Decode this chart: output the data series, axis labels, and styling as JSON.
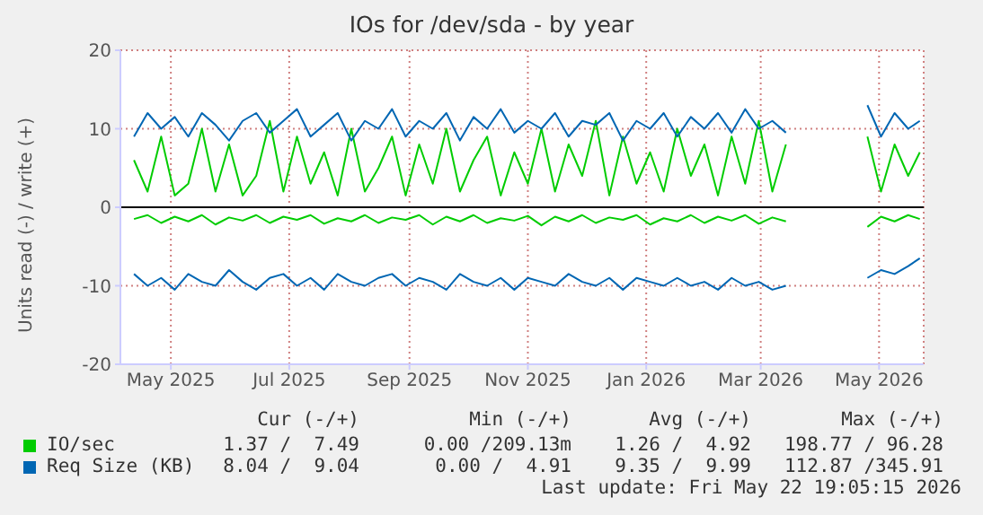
{
  "chart_data": {
    "type": "line",
    "title": "IOs for /dev/sda - by year",
    "ylabel": "Units read (-) / write (+)",
    "x": [
      "2025-04-12",
      "2025-04-19",
      "2025-04-26",
      "2025-05-03",
      "2025-05-10",
      "2025-05-17",
      "2025-05-24",
      "2025-05-31",
      "2025-06-07",
      "2025-06-14",
      "2025-06-21",
      "2025-06-28",
      "2025-07-05",
      "2025-07-12",
      "2025-07-19",
      "2025-07-26",
      "2025-08-02",
      "2025-08-09",
      "2025-08-16",
      "2025-08-23",
      "2025-08-30",
      "2025-09-06",
      "2025-09-13",
      "2025-09-20",
      "2025-09-27",
      "2025-10-04",
      "2025-10-11",
      "2025-10-18",
      "2025-10-25",
      "2025-11-01",
      "2025-11-08",
      "2025-11-15",
      "2025-11-22",
      "2025-11-29",
      "2025-12-06",
      "2025-12-13",
      "2025-12-20",
      "2025-12-27",
      "2026-01-03",
      "2026-01-10",
      "2026-01-17",
      "2026-01-24",
      "2026-01-31",
      "2026-02-07",
      "2026-02-14",
      "2026-02-21",
      "2026-02-28",
      "2026-03-07",
      "2026-03-14",
      "2026-03-21",
      "2026-03-28",
      "2026-04-04",
      "2026-04-11",
      "2026-04-18",
      "2026-04-25",
      "2026-05-02",
      "2026-05-09",
      "2026-05-16",
      "2026-05-22"
    ],
    "series": [
      {
        "name": "IO/sec",
        "color": "#00cc00",
        "values": [
          6,
          2,
          9,
          1.5,
          3,
          10,
          2,
          8,
          1.5,
          4,
          11,
          2,
          9,
          3,
          7,
          1.5,
          10,
          2,
          5,
          9,
          1.5,
          8,
          3,
          10,
          2,
          6,
          9,
          1.5,
          7,
          3,
          10,
          2,
          8,
          4,
          11,
          1.5,
          9,
          3,
          7,
          2,
          10,
          4,
          8,
          1.5,
          9,
          3,
          11,
          2,
          8,
          null,
          null,
          null,
          null,
          null,
          9,
          2,
          8,
          4,
          7
        ]
      },
      {
        "color": "#00cc00",
        "values": [
          -1.5,
          -1,
          -2,
          -1.2,
          -1.8,
          -1,
          -2.2,
          -1.3,
          -1.7,
          -1,
          -2,
          -1.2,
          -1.6,
          -1,
          -2.1,
          -1.4,
          -1.8,
          -1,
          -2,
          -1.3,
          -1.6,
          -1,
          -2.2,
          -1.2,
          -1.8,
          -1,
          -2,
          -1.4,
          -1.7,
          -1.1,
          -2.3,
          -1.2,
          -1.8,
          -1,
          -2,
          -1.3,
          -1.6,
          -1,
          -2.2,
          -1.4,
          -1.8,
          -1,
          -2,
          -1.2,
          -1.7,
          -1,
          -2.1,
          -1.3,
          -1.8,
          null,
          null,
          null,
          null,
          null,
          -2.5,
          -1.2,
          -1.8,
          -1,
          -1.5
        ]
      },
      {
        "name": "Req Size (KB)",
        "color": "#0066b3",
        "values": [
          9,
          12,
          10,
          11.5,
          9,
          12,
          10.5,
          8.5,
          11,
          12,
          9.5,
          11,
          12.5,
          9,
          10.5,
          12,
          8.5,
          11,
          10,
          12.5,
          9,
          11,
          10,
          12,
          8.5,
          11.5,
          10,
          12.5,
          9.5,
          11,
          10,
          12,
          9,
          11,
          10.5,
          12,
          8.5,
          11,
          10,
          12,
          9,
          11.5,
          10,
          12,
          9.5,
          12.5,
          10,
          11,
          9.5,
          null,
          null,
          null,
          null,
          null,
          13,
          9,
          12,
          10,
          11
        ]
      },
      {
        "color": "#0066b3",
        "values": [
          -8.5,
          -10,
          -9,
          -10.5,
          -8.5,
          -9.5,
          -10,
          -8,
          -9.5,
          -10.5,
          -9,
          -8.5,
          -10,
          -9,
          -10.5,
          -8.5,
          -9.5,
          -10,
          -9,
          -8.5,
          -10,
          -9,
          -9.5,
          -10.5,
          -8.5,
          -9.5,
          -10,
          -9,
          -10.5,
          -9,
          -9.5,
          -10,
          -8.5,
          -9.5,
          -10,
          -9,
          -10.5,
          -9,
          -9.5,
          -10,
          -9,
          -10,
          -9.5,
          -10.5,
          -9,
          -10,
          -9.5,
          -10.5,
          -10,
          null,
          null,
          null,
          null,
          null,
          -9,
          -8,
          -8.5,
          -7.5,
          -6.5
        ]
      }
    ],
    "xlim": [
      "2025-04-05",
      "2026-05-24"
    ],
    "xticks": [
      {
        "value": "2025-05-01",
        "label": "May 2025"
      },
      {
        "value": "2025-07-01",
        "label": "Jul 2025"
      },
      {
        "value": "2025-09-01",
        "label": "Sep 2025"
      },
      {
        "value": "2025-11-01",
        "label": "Nov 2025"
      },
      {
        "value": "2026-01-01",
        "label": "Jan 2026"
      },
      {
        "value": "2026-03-01",
        "label": "Mar 2026"
      },
      {
        "value": "2026-05-01",
        "label": "May 2026"
      }
    ],
    "ylim": [
      -20,
      20
    ],
    "yticks": [
      -20,
      -10,
      0,
      10,
      20
    ],
    "grid": true,
    "legend": "bottom",
    "ref_lines": [
      {
        "axis": "y",
        "value": 0,
        "color": "#000000"
      }
    ],
    "annotations": [
      "Cur (-/+)",
      "Min (-/+)",
      "Avg (-/+)",
      "Max (-/+)",
      "1.37 /  7.49",
      "0.00 /209.13m",
      "1.26 /  4.92",
      "198.77 / 96.28",
      "8.04 /  9.04",
      "0.00 /  4.91",
      "9.35 /  9.99",
      "112.87 /345.91",
      "Last update: Fri May 22 19:05:15 2026"
    ]
  }
}
